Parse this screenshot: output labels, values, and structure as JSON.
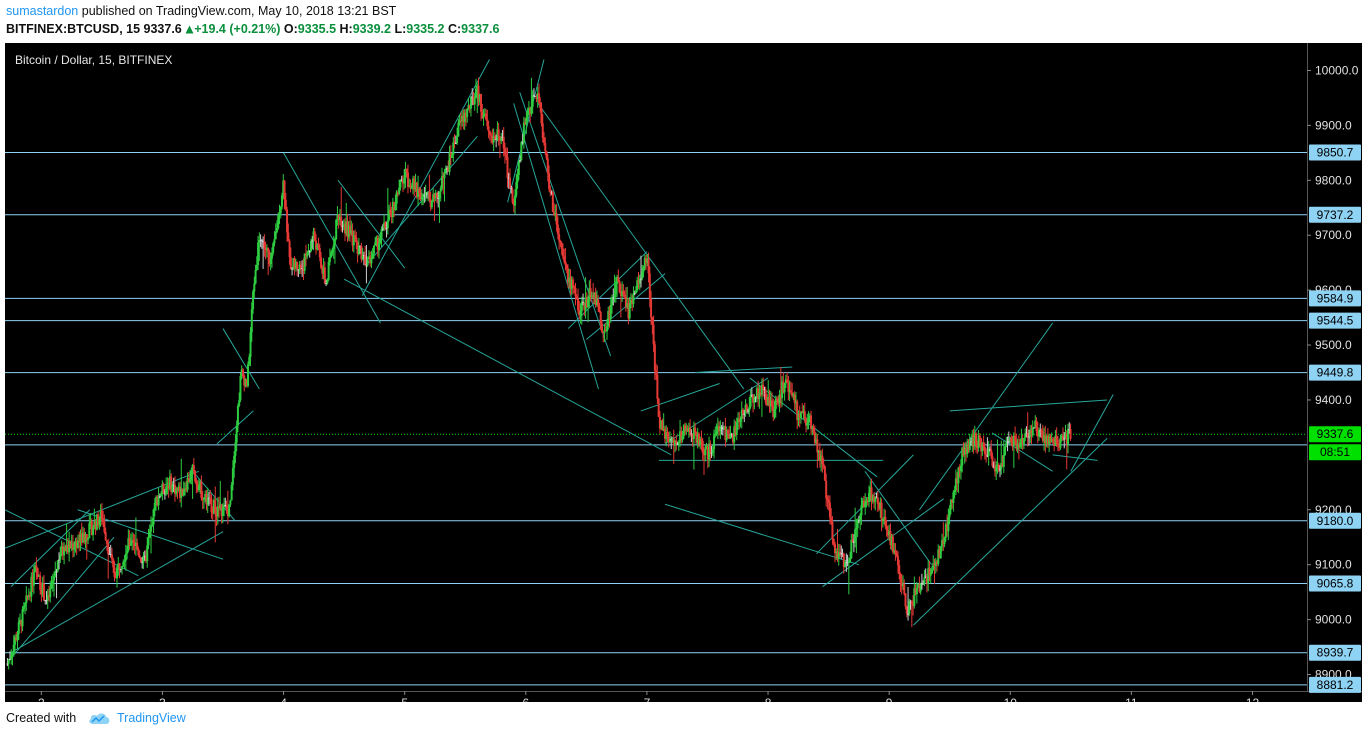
{
  "header": {
    "author": "sumastardon",
    "published_text": " published on TradingView.com, May 10, 2018 13:21 BST",
    "symbol": "BITFINEX:BTCUSD, 15",
    "last": "9337.6",
    "change": "+19.4 (+0.21%)",
    "o_label": "O:",
    "o_value": "9335.5",
    "h_label": "H:",
    "h_value": "9339.2",
    "l_label": "L:",
    "l_value": "9335.2",
    "c_label": "C:",
    "c_value": "9337.6"
  },
  "footer": {
    "created_with": "Created with",
    "brand": "TradingView"
  },
  "colors": {
    "up": "#2ecc40",
    "down": "#e53935",
    "neutral": "#d0d0d0",
    "level_line": "#8fd3f4",
    "trend_line": "#26a69a",
    "price_line": "#00e000",
    "badge_bg": "#8fd3f4",
    "price_badge_bg": "#00e000"
  },
  "chart_data": {
    "type": "candlestick",
    "title": "Bitcoin / Dollar, 15, BITFINEX",
    "x_ticks": [
      "2",
      "3",
      "4",
      "5",
      "6",
      "7",
      "8",
      "9",
      "10",
      "11",
      "12"
    ],
    "xlim": [
      1.7,
      12.45
    ],
    "y_ticks": [
      "10000.0",
      "9900.0",
      "9800.0",
      "9700.0",
      "9600.0",
      "9500.0",
      "9400.0",
      "9200.0",
      "9100.0",
      "9000.0",
      "8900.0"
    ],
    "ylim": [
      8870,
      10050
    ],
    "levels": [
      "9850.7",
      "9737.2",
      "9584.9",
      "9544.5",
      "9449.8",
      "9180.0",
      "9065.8",
      "8939.7",
      "8881.2"
    ],
    "hidden_level": "9318.1",
    "current_price": "9337.6",
    "countdown": "08:51",
    "price_path": [
      [
        1.72,
        8920
      ],
      [
        1.85,
        9010
      ],
      [
        1.95,
        9090
      ],
      [
        2.05,
        9030
      ],
      [
        2.15,
        9120
      ],
      [
        2.35,
        9150
      ],
      [
        2.5,
        9190
      ],
      [
        2.6,
        9080
      ],
      [
        2.75,
        9150
      ],
      [
        2.85,
        9100
      ],
      [
        2.95,
        9220
      ],
      [
        3.05,
        9250
      ],
      [
        3.15,
        9230
      ],
      [
        3.25,
        9270
      ],
      [
        3.35,
        9220
      ],
      [
        3.45,
        9200
      ],
      [
        3.55,
        9200
      ],
      [
        3.6,
        9330
      ],
      [
        3.65,
        9450
      ],
      [
        3.7,
        9430
      ],
      [
        3.75,
        9600
      ],
      [
        3.8,
        9700
      ],
      [
        3.9,
        9650
      ],
      [
        4.0,
        9800
      ],
      [
        4.05,
        9650
      ],
      [
        4.15,
        9640
      ],
      [
        4.25,
        9700
      ],
      [
        4.35,
        9610
      ],
      [
        4.45,
        9740
      ],
      [
        4.55,
        9700
      ],
      [
        4.7,
        9650
      ],
      [
        4.85,
        9720
      ],
      [
        5.0,
        9810
      ],
      [
        5.1,
        9780
      ],
      [
        5.25,
        9760
      ],
      [
        5.35,
        9820
      ],
      [
        5.45,
        9900
      ],
      [
        5.6,
        9960
      ],
      [
        5.7,
        9880
      ],
      [
        5.8,
        9880
      ],
      [
        5.9,
        9750
      ],
      [
        6.0,
        9920
      ],
      [
        6.1,
        9960
      ],
      [
        6.2,
        9780
      ],
      [
        6.3,
        9660
      ],
      [
        6.45,
        9560
      ],
      [
        6.55,
        9600
      ],
      [
        6.65,
        9520
      ],
      [
        6.75,
        9620
      ],
      [
        6.85,
        9560
      ],
      [
        7.0,
        9660
      ],
      [
        7.1,
        9360
      ],
      [
        7.2,
        9320
      ],
      [
        7.35,
        9350
      ],
      [
        7.5,
        9300
      ],
      [
        7.6,
        9350
      ],
      [
        7.7,
        9330
      ],
      [
        7.85,
        9400
      ],
      [
        7.95,
        9420
      ],
      [
        8.05,
        9380
      ],
      [
        8.15,
        9440
      ],
      [
        8.25,
        9370
      ],
      [
        8.35,
        9360
      ],
      [
        8.45,
        9280
      ],
      [
        8.55,
        9120
      ],
      [
        8.65,
        9100
      ],
      [
        8.75,
        9190
      ],
      [
        8.85,
        9230
      ],
      [
        8.95,
        9190
      ],
      [
        9.05,
        9120
      ],
      [
        9.15,
        9020
      ],
      [
        9.25,
        9060
      ],
      [
        9.35,
        9090
      ],
      [
        9.45,
        9140
      ],
      [
        9.5,
        9200
      ],
      [
        9.6,
        9300
      ],
      [
        9.7,
        9330
      ],
      [
        9.8,
        9310
      ],
      [
        9.9,
        9270
      ],
      [
        10.0,
        9330
      ],
      [
        10.1,
        9320
      ],
      [
        10.2,
        9350
      ],
      [
        10.3,
        9330
      ],
      [
        10.4,
        9320
      ],
      [
        10.5,
        9337.6
      ]
    ],
    "trend_lines": [
      [
        [
          1.7,
          9130
        ],
        [
          3.3,
          9270
        ]
      ],
      [
        [
          1.75,
          8940
        ],
        [
          3.5,
          9160
        ]
      ],
      [
        [
          1.7,
          9200
        ],
        [
          2.8,
          9080
        ]
      ],
      [
        [
          1.75,
          9060
        ],
        [
          2.4,
          9200
        ]
      ],
      [
        [
          1.75,
          8930
        ],
        [
          2.6,
          9150
        ]
      ],
      [
        [
          2.3,
          9200
        ],
        [
          3.5,
          9110
        ]
      ],
      [
        [
          3.25,
          9270
        ],
        [
          3.6,
          9180
        ]
      ],
      [
        [
          3.5,
          9530
        ],
        [
          3.8,
          9420
        ]
      ],
      [
        [
          3.45,
          9320
        ],
        [
          3.75,
          9380
        ]
      ],
      [
        [
          4.0,
          9850
        ],
        [
          4.8,
          9540
        ]
      ],
      [
        [
          4.45,
          9800
        ],
        [
          5.0,
          9640
        ]
      ],
      [
        [
          4.65,
          9590
        ],
        [
          5.7,
          10020
        ]
      ],
      [
        [
          4.7,
          9650
        ],
        [
          5.6,
          9880
        ]
      ],
      [
        [
          4.5,
          9620
        ],
        [
          7.2,
          9300
        ]
      ],
      [
        [
          5.85,
          9760
        ],
        [
          6.15,
          10020
        ]
      ],
      [
        [
          5.9,
          9940
        ],
        [
          6.6,
          9420
        ]
      ],
      [
        [
          5.95,
          9960
        ],
        [
          6.7,
          9480
        ]
      ],
      [
        [
          6.35,
          9530
        ],
        [
          7.0,
          9670
        ]
      ],
      [
        [
          6.5,
          9510
        ],
        [
          7.15,
          9630
        ]
      ],
      [
        [
          6.1,
          9940
        ],
        [
          7.8,
          9420
        ]
      ],
      [
        [
          7.85,
          9440
        ],
        [
          8.9,
          9260
        ]
      ],
      [
        [
          7.15,
          9210
        ],
        [
          8.75,
          9100
        ]
      ],
      [
        [
          6.95,
          9380
        ],
        [
          7.6,
          9430
        ]
      ],
      [
        [
          7.15,
          9320
        ],
        [
          8.0,
          9440
        ]
      ],
      [
        [
          7.4,
          9450
        ],
        [
          8.2,
          9460
        ]
      ],
      [
        [
          7.1,
          9290
        ],
        [
          8.95,
          9290
        ]
      ],
      [
        [
          8.45,
          9060
        ],
        [
          9.45,
          9220
        ]
      ],
      [
        [
          8.4,
          9120
        ],
        [
          9.2,
          9300
        ]
      ],
      [
        [
          8.8,
          9270
        ],
        [
          9.35,
          9100
        ]
      ],
      [
        [
          9.2,
          8990
        ],
        [
          10.8,
          9330
        ]
      ],
      [
        [
          9.25,
          9200
        ],
        [
          10.35,
          9540
        ]
      ],
      [
        [
          9.5,
          9380
        ],
        [
          10.8,
          9400
        ]
      ],
      [
        [
          9.85,
          9340
        ],
        [
          10.35,
          9270
        ]
      ],
      [
        [
          10.35,
          9300
        ],
        [
          10.72,
          9290
        ]
      ],
      [
        [
          10.5,
          9270
        ],
        [
          10.85,
          9410
        ]
      ]
    ]
  }
}
